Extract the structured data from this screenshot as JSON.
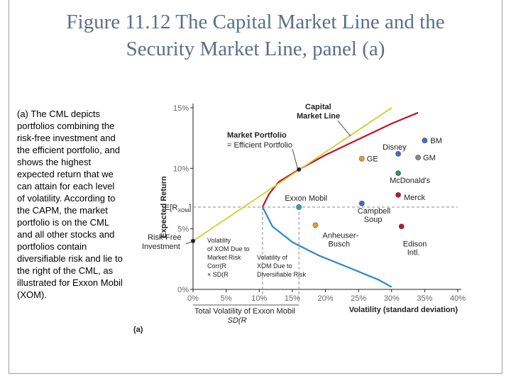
{
  "title_line1": "Figure 11.12  The Capital Market Line and the",
  "title_line2": "Security Market Line, panel (a)",
  "caption": "(a) The CML depicts portfolios combining the risk-free investment and the efficient portfolio, and shows the highest expected return that we can attain for each level of volatility. According to the CAPM, the market portfolio is on the CML and all other stocks and portfolios contain diversifiable risk and lie to the right of the CML, as illustrated for Exxon Mobil (XOM).",
  "colors": {
    "cml": "#c8d22a",
    "frontier_upper": "#c0142c",
    "frontier_lower": "#2a8ac8",
    "dashed": "#888888",
    "point": "#222222"
  },
  "chart_data": {
    "type": "scatter",
    "xlabel": "Volatility (standard deviation)",
    "ylabel": "Expected Return",
    "xlim": [
      0,
      40
    ],
    "ylim": [
      0,
      15
    ],
    "x_ticks": [
      "0%",
      "5%",
      "10%",
      "15%",
      "20%",
      "25%",
      "30%",
      "35%",
      "40%"
    ],
    "y_ticks": [
      "0%",
      "5%",
      "10%",
      "15%"
    ],
    "panel_label": "(a)",
    "cml": {
      "label_line1": "Capital",
      "label_line2": "Market Line",
      "x": [
        0,
        30
      ],
      "y": [
        4,
        15
      ]
    },
    "risk_free": {
      "label_line1": "Risk-Free",
      "label_line2": "Investment",
      "x": 0,
      "y": 4
    },
    "market_portfolio": {
      "label_line1": "Market Portfolio",
      "label_line2": "= Efficient Portfolio",
      "x": 16,
      "y": 9.9
    },
    "xom_return_label": "E[R",
    "xom_return_sub": "XOM",
    "xom_return_close": "]",
    "frontier": {
      "min_var_x": 10.5,
      "min_var_y": 6.8,
      "upper": {
        "x": [
          10.5,
          11.5,
          13,
          16,
          20,
          25,
          30,
          34
        ],
        "y": [
          6.8,
          7.9,
          8.9,
          9.9,
          11.1,
          12.4,
          13.7,
          14.6
        ]
      },
      "lower": {
        "x": [
          10.5,
          12,
          15,
          19,
          24,
          28,
          30
        ],
        "y": [
          6.8,
          5.2,
          3.9,
          2.8,
          1.7,
          0.8,
          0.2
        ]
      }
    },
    "stocks": [
      {
        "name": "BM",
        "x": 35,
        "y": 12.3,
        "color": "#3a6ec8"
      },
      {
        "name": "GE",
        "x": 25.5,
        "y": 10.8,
        "color": "#e8a020"
      },
      {
        "name": "Disney",
        "x": 31,
        "y": 11.2,
        "color": "#3a6ec8"
      },
      {
        "name": "GM",
        "x": 34,
        "y": 10.9,
        "color": "#888888"
      },
      {
        "name": "McDonald's",
        "x": 31,
        "y": 9.6,
        "color": "#2a9a4a"
      },
      {
        "name": "Merck",
        "x": 31,
        "y": 7.8,
        "color": "#c0142c"
      },
      {
        "name": "Exxon Mobil",
        "x": 16,
        "y": 6.8,
        "color": "#2aa8a0"
      },
      {
        "name": "Campbell Soup",
        "x": 25.5,
        "y": 7.1,
        "color": "#3a6ec8"
      },
      {
        "name": "Anheuser-Busch",
        "x": 18.5,
        "y": 5.3,
        "color": "#e8a020"
      },
      {
        "name": "Edison Intl.",
        "x": 31.5,
        "y": 5.2,
        "color": "#c0142c"
      }
    ],
    "xom_volatility": 16,
    "xom_return": 6.8,
    "xom_market_vol": 10.5,
    "annotations": {
      "vol_due_market": [
        "Volatility",
        "of XOM Due to",
        "Market Risk",
        "Corr(R",
        "× SD(R"
      ],
      "vol_due_div": [
        "Volatility of",
        "XOM Due to",
        "Diversifiable Risk"
      ],
      "total_vol_line1": "Total Volatility of Exxon Mobil",
      "total_vol_line2": "SD(R"
    }
  }
}
